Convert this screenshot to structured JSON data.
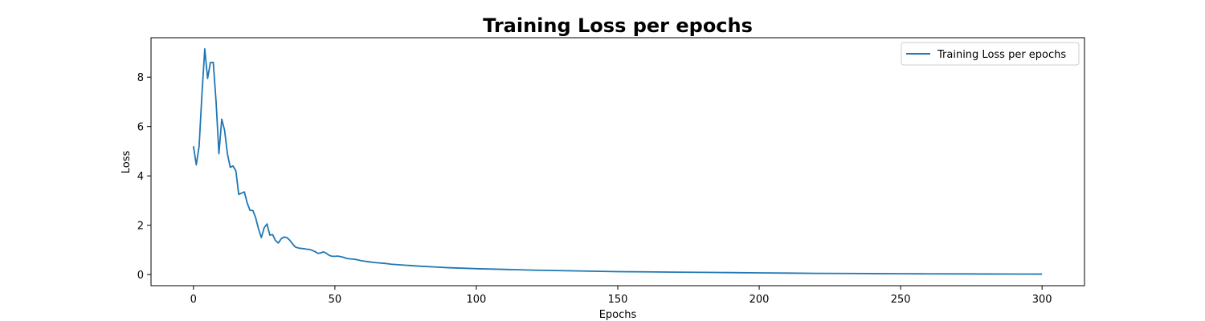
{
  "chart_data": {
    "type": "line",
    "title": "Training Loss per epochs",
    "xlabel": "Epochs",
    "ylabel": "Loss",
    "xlim": [
      -15,
      315
    ],
    "ylim": [
      -0.45,
      9.6
    ],
    "xticks": [
      0,
      50,
      100,
      150,
      200,
      250,
      300
    ],
    "yticks": [
      0,
      2,
      4,
      6,
      8
    ],
    "grid": false,
    "legend_position": "upper right",
    "series": [
      {
        "name": "Training Loss per epochs",
        "color": "#1f77b4",
        "x": [
          0,
          1,
          2,
          3,
          4,
          5,
          6,
          7,
          8,
          9,
          10,
          11,
          12,
          13,
          14,
          15,
          16,
          17,
          18,
          19,
          20,
          21,
          22,
          23,
          24,
          25,
          26,
          27,
          28,
          29,
          30,
          31,
          32,
          33,
          34,
          35,
          36,
          37,
          38,
          39,
          40,
          41,
          42,
          43,
          44,
          45,
          46,
          47,
          48,
          49,
          50,
          51,
          52,
          53,
          54,
          55,
          56,
          57,
          58,
          59,
          60,
          62,
          64,
          66,
          68,
          70,
          75,
          80,
          85,
          90,
          95,
          100,
          110,
          120,
          130,
          140,
          150,
          160,
          170,
          180,
          190,
          200,
          210,
          220,
          230,
          240,
          250,
          260,
          270,
          280,
          290,
          300
        ],
        "y": [
          5.2,
          4.45,
          5.2,
          7.3,
          9.15,
          7.95,
          8.6,
          8.6,
          7.0,
          4.9,
          6.3,
          5.85,
          4.9,
          4.35,
          4.4,
          4.2,
          3.25,
          3.3,
          3.35,
          2.9,
          2.6,
          2.6,
          2.3,
          1.85,
          1.5,
          1.9,
          2.05,
          1.6,
          1.62,
          1.38,
          1.28,
          1.45,
          1.52,
          1.5,
          1.4,
          1.25,
          1.12,
          1.08,
          1.06,
          1.05,
          1.03,
          1.02,
          0.98,
          0.93,
          0.86,
          0.88,
          0.92,
          0.86,
          0.78,
          0.74,
          0.74,
          0.75,
          0.73,
          0.7,
          0.66,
          0.64,
          0.63,
          0.62,
          0.6,
          0.57,
          0.55,
          0.52,
          0.49,
          0.47,
          0.45,
          0.42,
          0.38,
          0.34,
          0.31,
          0.28,
          0.26,
          0.24,
          0.21,
          0.18,
          0.16,
          0.14,
          0.12,
          0.11,
          0.1,
          0.09,
          0.08,
          0.07,
          0.06,
          0.05,
          0.045,
          0.04,
          0.035,
          0.03,
          0.027,
          0.024,
          0.021,
          0.02
        ]
      }
    ]
  }
}
